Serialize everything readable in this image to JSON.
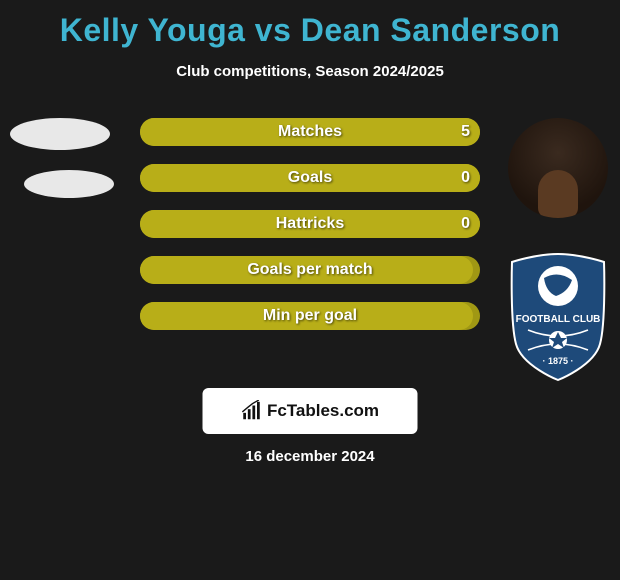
{
  "title_color": "#3fb5d1",
  "title": "Kelly Youga vs Dean Sanderson",
  "subtitle": "Club competitions, Season 2024/2025",
  "bars": {
    "track_width": 340,
    "track_color": "#a09814",
    "fill_color": "#b8ae18",
    "rows": [
      {
        "label": "Matches",
        "right_value": "5",
        "fill_pct": 100
      },
      {
        "label": "Goals",
        "right_value": "0",
        "fill_pct": 100
      },
      {
        "label": "Hattricks",
        "right_value": "0",
        "fill_pct": 100
      },
      {
        "label": "Goals per match",
        "right_value": "",
        "fill_pct": 98
      },
      {
        "label": "Min per goal",
        "right_value": "",
        "fill_pct": 98
      }
    ]
  },
  "brand": "FcTables.com",
  "date": "16 december 2024",
  "colors": {
    "background": "#1a1a1a",
    "text": "#ffffff",
    "logo_blue": "#1e4a7a"
  }
}
